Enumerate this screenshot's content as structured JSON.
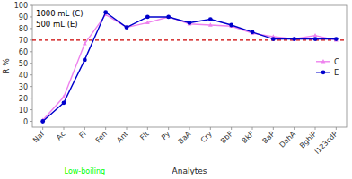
{
  "chart_data": {
    "type": "line",
    "categories": [
      "Naf",
      "Ac",
      "Fl",
      "Fen",
      "Ant",
      "Flt",
      "Py",
      "BaA",
      "Cry",
      "BbF",
      "BkF",
      "BaP",
      "DahA",
      "BghiP",
      "I123cdP"
    ],
    "series": [
      {
        "name": "C",
        "color": "#ee82ee",
        "marker": "triangle",
        "values": [
          1,
          21,
          67,
          92,
          81,
          85,
          90,
          84,
          83,
          82,
          76,
          73,
          71,
          74,
          70
        ]
      },
      {
        "name": "E",
        "color": "#0000cc",
        "marker": "circle",
        "values": [
          0,
          16,
          53,
          94,
          81,
          90,
          90,
          85,
          88,
          83,
          77,
          71,
          71,
          71,
          71
        ]
      }
    ],
    "reference_line": {
      "value": 70,
      "color": "#cc0000",
      "line_style": "dashed"
    },
    "ylabel": "R %",
    "xlabel": "Analytes",
    "ylim": [
      -5,
      100
    ],
    "yticks": [
      0,
      10,
      20,
      30,
      40,
      50,
      60,
      70,
      80,
      90,
      100
    ],
    "annotations": [
      {
        "text": "1000 mL (C)"
      },
      {
        "text": "500 mL (E)"
      }
    ],
    "range_label": {
      "text": "Low-boiling",
      "color": "lime",
      "from": "Naf",
      "to": "Ant"
    },
    "grid": false,
    "legend": "center right"
  }
}
